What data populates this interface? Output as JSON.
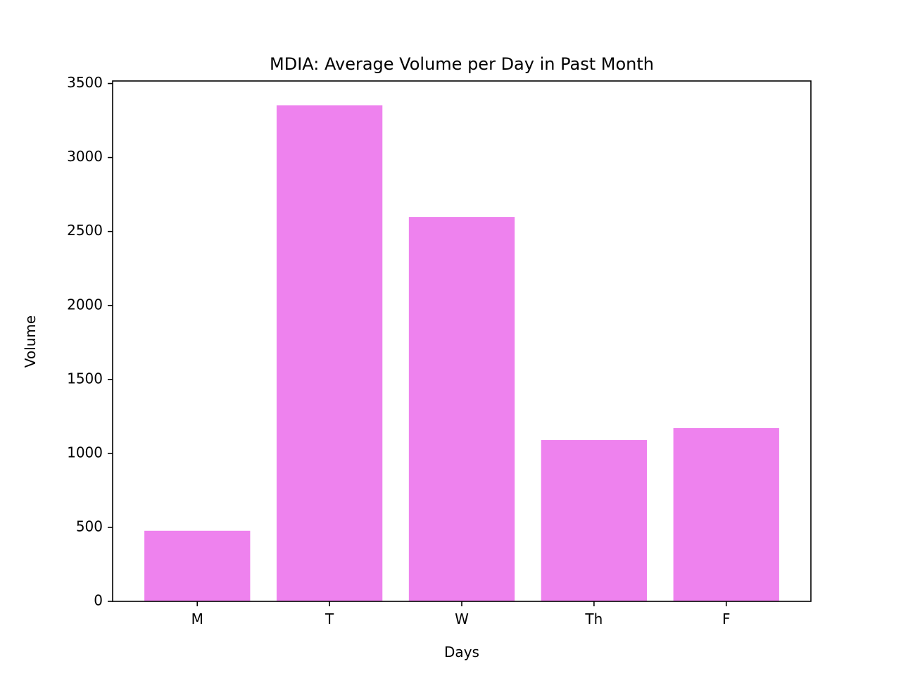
{
  "chart_data": {
    "type": "bar",
    "title": "MDIA: Average Volume per Day in Past Month",
    "xlabel": "Days",
    "ylabel": "Volume",
    "categories": [
      "M",
      "T",
      "W",
      "Th",
      "F"
    ],
    "values": [
      477,
      3353,
      2598,
      1090,
      1171
    ],
    "ylim": [
      0,
      3517
    ],
    "yticks": [
      0,
      500,
      1000,
      1500,
      2000,
      2500,
      3000,
      3500
    ],
    "bar_color": "#ee82ee",
    "grid": false,
    "legend": "none"
  }
}
